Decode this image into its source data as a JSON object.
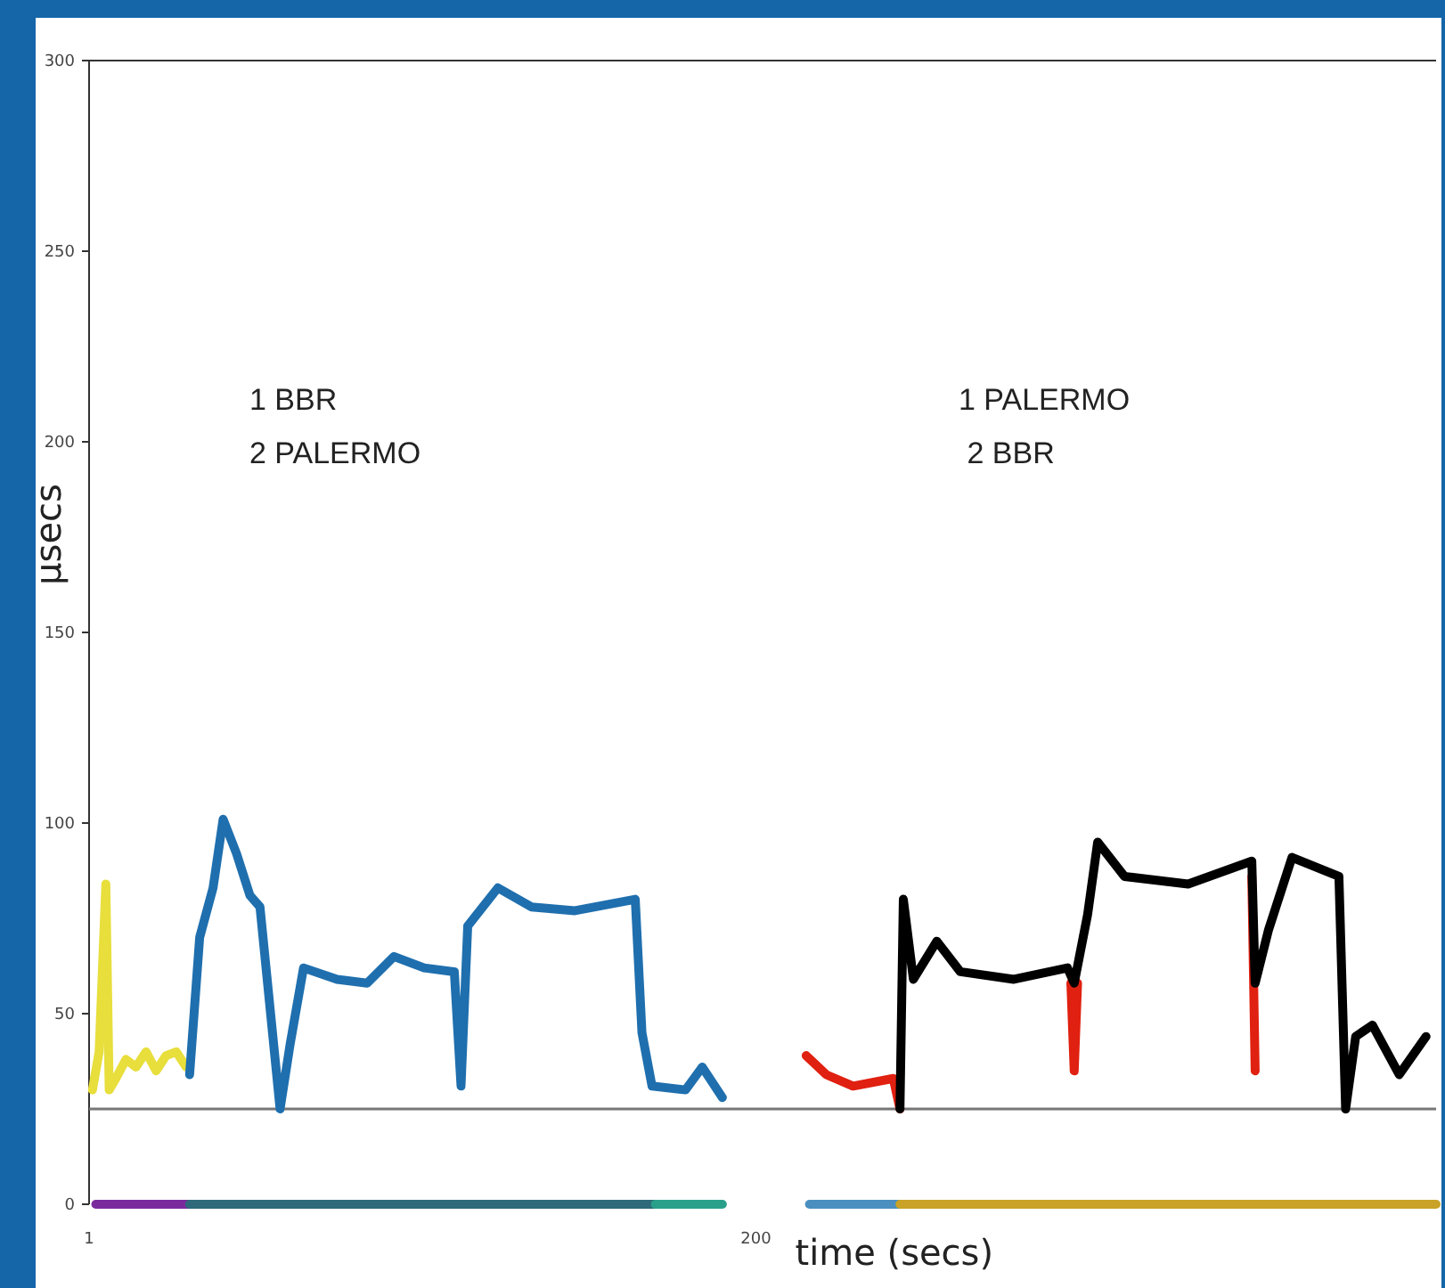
{
  "chart_data": {
    "type": "line",
    "ylabel": "µsecs",
    "xlabel": "time (secs)",
    "xlim": [
      1,
      403
    ],
    "xticks": [
      1,
      200
    ],
    "ylim": [
      0,
      300
    ],
    "yticks": [
      0,
      50,
      100,
      150,
      200,
      250,
      300
    ],
    "grid": false,
    "marker": "none",
    "line_style": "solid",
    "annotations": [
      "1 BBR\n2 PALERMO",
      "1 PALERMO\n 2 BBR"
    ],
    "ref_lines": [
      {
        "axis": "y",
        "value": 25,
        "color": "#777777"
      }
    ],
    "series": [
      {
        "color": "#e8de3c",
        "x": [
          2,
          4,
          6,
          7,
          9,
          12,
          15,
          18,
          21,
          24,
          27,
          30
        ],
        "values": [
          30,
          40,
          84,
          30,
          33,
          38,
          36,
          40,
          35,
          39,
          40,
          36
        ]
      },
      {
        "color": "#1f6fae",
        "x": [
          31,
          34,
          38,
          41,
          45,
          49,
          52,
          58,
          61,
          65,
          75,
          84,
          92,
          101,
          110,
          112,
          114,
          123,
          133,
          146,
          164,
          166,
          169,
          179,
          184,
          190
        ],
        "values": [
          34,
          70,
          83,
          101,
          92,
          81,
          78,
          25,
          42,
          62,
          59,
          58,
          65,
          62,
          61,
          31,
          73,
          83,
          78,
          77,
          80,
          45,
          31,
          30,
          36,
          28
        ]
      },
      {
        "color": "#e02010",
        "x": [
          215,
          221,
          229,
          241,
          243,
          244,
          294,
          295,
          296,
          347,
          348,
          349
        ],
        "values": [
          39,
          34,
          31,
          33,
          25,
          null,
          58,
          35,
          58,
          null,
          86,
          35
        ]
      },
      {
        "color": "#000000",
        "x": [
          243,
          244,
          247,
          254,
          261,
          277,
          293,
          295,
          299,
          302,
          310,
          329,
          348,
          349,
          353,
          360,
          374,
          376,
          379,
          384,
          392,
          400
        ],
        "values": [
          25,
          80,
          59,
          69,
          61,
          59,
          62,
          58,
          76,
          95,
          86,
          84,
          90,
          58,
          72,
          91,
          86,
          25,
          44,
          47,
          34,
          44
        ]
      },
      {
        "color": "#7b2a9e",
        "x": [
          3,
          31
        ],
        "values": [
          0,
          0
        ]
      },
      {
        "color": "#2e6a7a",
        "x": [
          31,
          170
        ],
        "values": [
          0,
          0
        ]
      },
      {
        "color": "#2aa08a",
        "x": [
          170,
          190
        ],
        "values": [
          0,
          0
        ]
      },
      {
        "color": "#4a8fc0",
        "x": [
          216,
          243
        ],
        "values": [
          0,
          0
        ]
      },
      {
        "color": "#c9a227",
        "x": [
          243,
          403
        ],
        "values": [
          0,
          0
        ]
      }
    ]
  }
}
